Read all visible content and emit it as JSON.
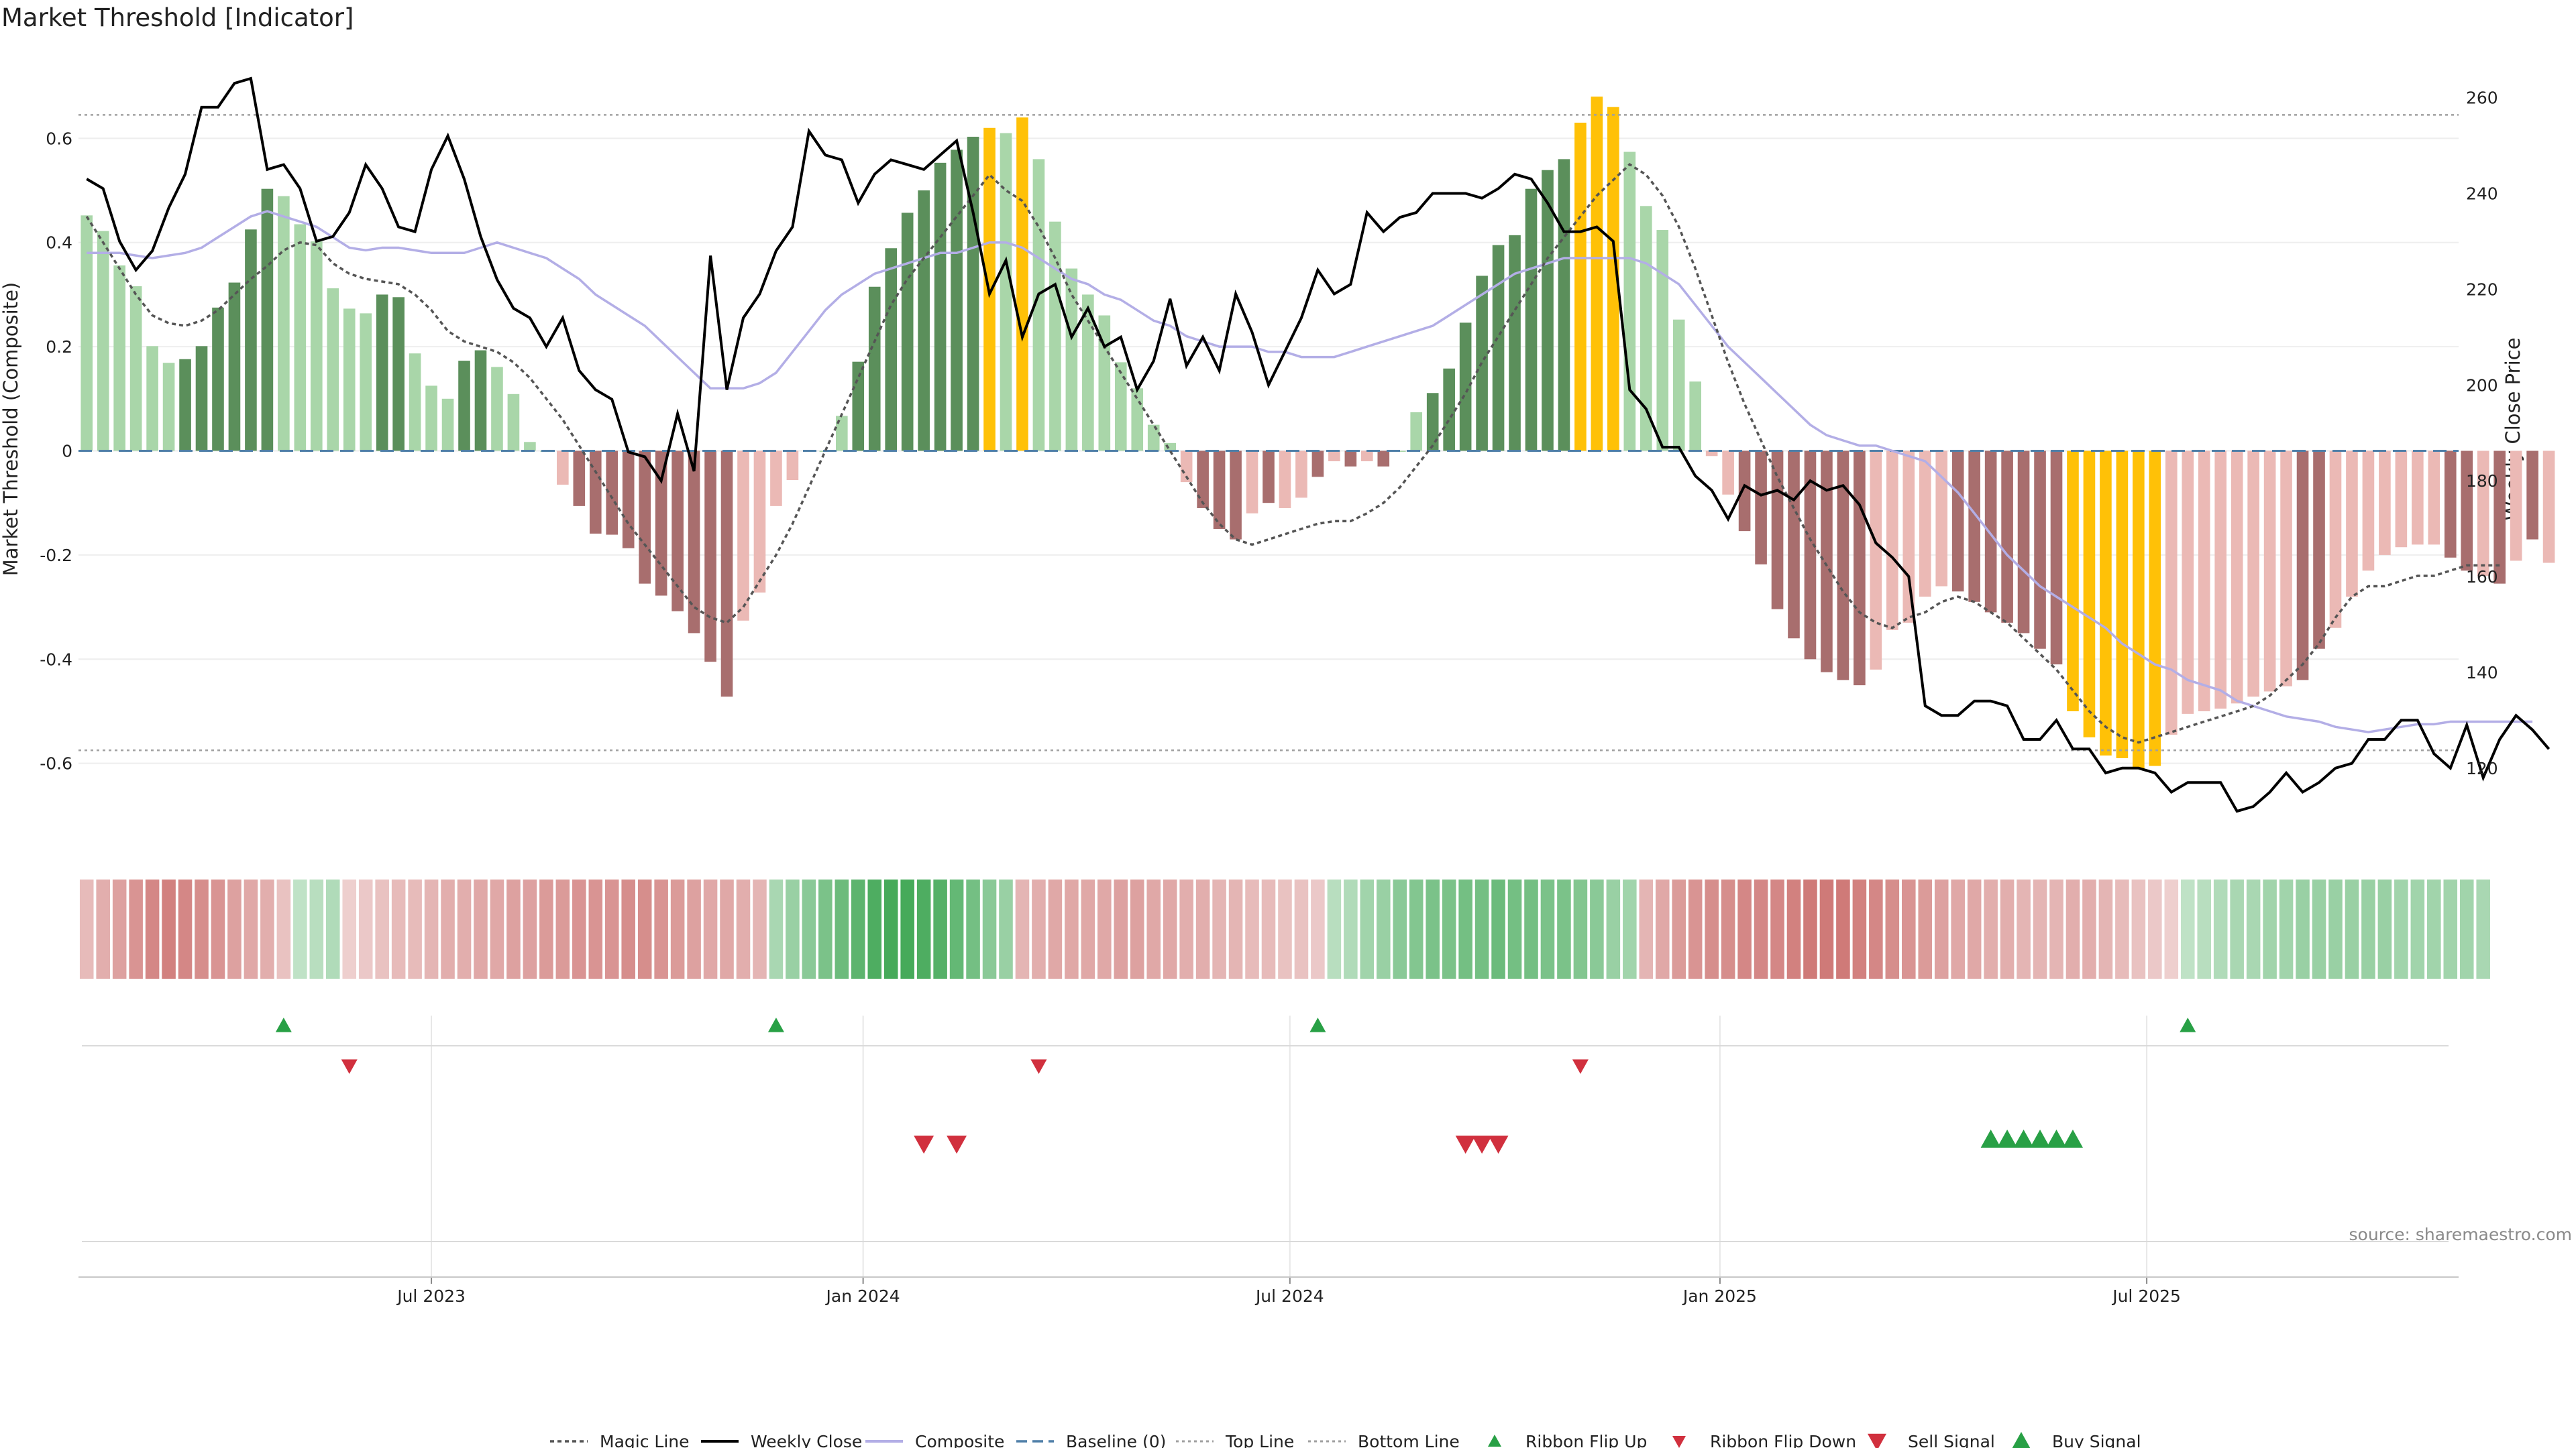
{
  "colors": {
    "pos_strong": "#5b8f5b",
    "pos_light": "#a9d6a9",
    "neg_strong": "#a86e6e",
    "neg_light": "#ebb9b5",
    "extreme": "#ffc107",
    "close": "#000000",
    "composite": "#b3aee6",
    "magic": "#555555",
    "baseline": "#4f7fa8",
    "threshold": "#a0a0a0",
    "flip_up": "#28a045",
    "flip_down": "#d1303e"
  },
  "chart_data": {
    "type": "bar",
    "title": "Market Threshold [Indicator]",
    "ylabel": "Market Threshold (Composite)",
    "y2label": "Weekly Close Price",
    "ylim": [
      -0.76,
      0.76
    ],
    "y2lim": [
      103.6,
      268.9
    ],
    "yticks": [
      "-0.6",
      "-0.4",
      "-0.2",
      "0",
      "0.2",
      "0.4",
      "0.6"
    ],
    "y2ticks": [
      "120",
      "140",
      "160",
      "180",
      "200",
      "220",
      "240",
      "260"
    ],
    "xlim": [
      0,
      144
    ],
    "xticks": [
      {
        "label": "Jul 2023",
        "x": 21
      },
      {
        "label": "Jan 2024",
        "x": 47.3
      },
      {
        "label": "Jul 2024",
        "x": 73.3
      },
      {
        "label": "Jan 2025",
        "x": 99.5
      },
      {
        "label": "Jul 2025",
        "x": 125.5
      }
    ],
    "top_line": 0.645,
    "bottom_line": -0.575,
    "baseline": 0,
    "bars": [
      0.452,
      0.422,
      0.356,
      0.316,
      0.201,
      0.169,
      0.176,
      0.201,
      0.275,
      0.323,
      0.425,
      0.503,
      0.489,
      0.435,
      0.402,
      0.312,
      0.273,
      0.264,
      0.3,
      0.295,
      0.187,
      0.125,
      0.1,
      0.173,
      0.193,
      0.161,
      0.109,
      0.017,
      0.0,
      -0.065,
      -0.106,
      -0.159,
      -0.161,
      -0.187,
      -0.255,
      -0.278,
      -0.308,
      -0.35,
      -0.405,
      -0.472,
      -0.326,
      -0.272,
      -0.106,
      -0.056,
      0.0,
      0.0,
      0.067,
      0.171,
      0.315,
      0.389,
      0.457,
      0.5,
      0.553,
      0.578,
      0.603,
      0.62,
      0.61,
      0.64,
      0.56,
      0.44,
      0.35,
      0.3,
      0.26,
      0.17,
      0.12,
      0.05,
      0.015,
      -0.06,
      -0.11,
      -0.15,
      -0.17,
      -0.12,
      -0.1,
      -0.11,
      -0.09,
      -0.05,
      -0.02,
      -0.03,
      -0.02,
      -0.03,
      0.0,
      0.074,
      0.111,
      0.158,
      0.246,
      0.336,
      0.395,
      0.414,
      0.503,
      0.539,
      0.56,
      0.63,
      0.68,
      0.66,
      0.574,
      0.47,
      0.424,
      0.252,
      0.133,
      -0.01,
      -0.084,
      -0.154,
      -0.218,
      -0.304,
      -0.36,
      -0.4,
      -0.425,
      -0.44,
      -0.45,
      -0.42,
      -0.344,
      -0.33,
      -0.28,
      -0.26,
      -0.27,
      -0.29,
      -0.31,
      -0.33,
      -0.35,
      -0.38,
      -0.41,
      -0.5,
      -0.55,
      -0.585,
      -0.59,
      -0.61,
      -0.605,
      -0.545,
      -0.505,
      -0.5,
      -0.495,
      -0.485,
      -0.472,
      -0.462,
      -0.452,
      -0.44,
      -0.38,
      -0.34,
      -0.28,
      -0.23,
      -0.2,
      -0.185,
      -0.18,
      -0.18,
      -0.205,
      -0.23,
      -0.24,
      -0.255,
      -0.211,
      -0.17,
      -0.215
    ],
    "bar_shades": [
      "l",
      "l",
      "l",
      "l",
      "l",
      "l",
      "s",
      "s",
      "s",
      "s",
      "s",
      "s",
      "l",
      "l",
      "l",
      "l",
      "l",
      "l",
      "s",
      "s",
      "l",
      "l",
      "l",
      "s",
      "s",
      "l",
      "l",
      "l",
      "l",
      "l",
      "s",
      "s",
      "s",
      "s",
      "s",
      "s",
      "s",
      "s",
      "s",
      "s",
      "l",
      "l",
      "l",
      "l",
      "l",
      "l",
      "l",
      "s",
      "s",
      "s",
      "s",
      "s",
      "s",
      "s",
      "s",
      "y",
      "l",
      "y",
      "l",
      "l",
      "l",
      "l",
      "l",
      "l",
      "l",
      "l",
      "l",
      "l",
      "s",
      "s",
      "s",
      "l",
      "s",
      "l",
      "l",
      "s",
      "l",
      "s",
      "l",
      "s",
      "l",
      "l",
      "s",
      "s",
      "s",
      "s",
      "s",
      "s",
      "s",
      "s",
      "s",
      "y",
      "y",
      "y",
      "l",
      "l",
      "l",
      "l",
      "l",
      "l",
      "l",
      "s",
      "s",
      "s",
      "s",
      "s",
      "s",
      "s",
      "s",
      "l",
      "l",
      "l",
      "l",
      "l",
      "s",
      "s",
      "s",
      "s",
      "s",
      "s",
      "s",
      "y",
      "y",
      "y",
      "y",
      "y",
      "y",
      "l",
      "l",
      "l",
      "l",
      "l",
      "l",
      "l",
      "l",
      "s",
      "s",
      "l",
      "l",
      "l",
      "l",
      "l",
      "l",
      "l",
      "s",
      "s",
      "l",
      "s",
      "l",
      "s"
    ],
    "series": [
      {
        "name": "Magic Line",
        "style": "dotted",
        "values": [
          0.45,
          0.4,
          0.35,
          0.3,
          0.26,
          0.245,
          0.24,
          0.25,
          0.27,
          0.3,
          0.33,
          0.355,
          0.385,
          0.4,
          0.395,
          0.36,
          0.34,
          0.33,
          0.325,
          0.32,
          0.3,
          0.27,
          0.23,
          0.21,
          0.2,
          0.19,
          0.17,
          0.14,
          0.1,
          0.06,
          0.01,
          -0.04,
          -0.09,
          -0.14,
          -0.18,
          -0.22,
          -0.26,
          -0.3,
          -0.32,
          -0.33,
          -0.3,
          -0.25,
          -0.2,
          -0.14,
          -0.07,
          0.0,
          0.07,
          0.14,
          0.21,
          0.28,
          0.33,
          0.37,
          0.41,
          0.45,
          0.49,
          0.53,
          0.5,
          0.48,
          0.43,
          0.37,
          0.3,
          0.25,
          0.2,
          0.15,
          0.1,
          0.05,
          0.0,
          -0.05,
          -0.1,
          -0.14,
          -0.17,
          -0.18,
          -0.17,
          -0.16,
          -0.15,
          -0.14,
          -0.135,
          -0.135,
          -0.12,
          -0.1,
          -0.07,
          -0.03,
          0.01,
          0.06,
          0.11,
          0.17,
          0.22,
          0.27,
          0.32,
          0.37,
          0.41,
          0.45,
          0.49,
          0.52,
          0.55,
          0.53,
          0.49,
          0.43,
          0.35,
          0.26,
          0.17,
          0.09,
          0.02,
          -0.05,
          -0.11,
          -0.17,
          -0.22,
          -0.27,
          -0.31,
          -0.33,
          -0.34,
          -0.32,
          -0.31,
          -0.29,
          -0.28,
          -0.29,
          -0.31,
          -0.33,
          -0.36,
          -0.39,
          -0.42,
          -0.46,
          -0.5,
          -0.53,
          -0.55,
          -0.56,
          -0.55,
          -0.54,
          -0.53,
          -0.52,
          -0.51,
          -0.5,
          -0.49,
          -0.47,
          -0.44,
          -0.41,
          -0.37,
          -0.32,
          -0.28,
          -0.26,
          -0.26,
          -0.25,
          -0.24,
          -0.24,
          -0.23,
          -0.22,
          -0.22,
          -0.22
        ]
      },
      {
        "name": "Weekly Close",
        "style": "solid",
        "values": [
          243,
          241,
          230,
          224,
          228,
          237,
          244,
          258,
          258,
          263,
          264,
          245,
          246,
          241,
          230,
          231,
          236,
          246,
          241,
          233,
          232,
          245,
          252,
          243,
          231,
          222,
          216,
          214,
          208,
          214,
          203,
          199,
          197,
          186,
          185,
          180,
          194,
          182,
          227,
          199,
          214,
          219,
          228,
          233,
          253,
          248,
          247,
          238,
          244,
          247,
          246,
          245,
          248,
          251,
          236,
          219,
          226,
          210,
          219,
          221,
          210,
          216,
          208,
          210,
          199,
          205,
          218,
          204,
          210,
          203,
          219,
          211,
          200,
          207,
          214,
          224,
          219,
          221,
          236,
          232,
          235,
          236,
          240,
          240,
          240,
          239,
          241,
          244,
          243,
          238,
          232,
          232,
          233,
          230,
          199,
          195,
          187,
          187,
          181,
          178,
          172,
          179,
          177,
          178,
          176,
          180,
          178,
          179,
          175,
          167,
          164,
          160,
          133,
          131,
          131,
          134,
          134,
          133,
          126,
          126,
          130,
          124,
          124,
          119,
          120,
          120,
          119,
          115,
          117,
          117,
          117,
          111,
          112,
          115,
          119,
          115,
          117,
          120,
          121,
          126,
          126,
          130,
          130,
          123,
          120,
          129,
          118,
          126,
          131,
          128,
          124
        ]
      },
      {
        "name": "Composite",
        "style": "solid",
        "values": [
          0.38,
          0.38,
          0.38,
          0.375,
          0.37,
          0.375,
          0.38,
          0.39,
          0.41,
          0.43,
          0.45,
          0.46,
          0.45,
          0.44,
          0.43,
          0.41,
          0.39,
          0.385,
          0.39,
          0.39,
          0.385,
          0.38,
          0.38,
          0.38,
          0.39,
          0.4,
          0.39,
          0.38,
          0.37,
          0.35,
          0.33,
          0.3,
          0.28,
          0.26,
          0.24,
          0.21,
          0.18,
          0.15,
          0.12,
          0.12,
          0.12,
          0.13,
          0.15,
          0.19,
          0.23,
          0.27,
          0.3,
          0.32,
          0.34,
          0.35,
          0.36,
          0.37,
          0.38,
          0.38,
          0.39,
          0.4,
          0.4,
          0.39,
          0.37,
          0.35,
          0.33,
          0.32,
          0.3,
          0.29,
          0.27,
          0.25,
          0.24,
          0.22,
          0.21,
          0.2,
          0.2,
          0.2,
          0.19,
          0.19,
          0.18,
          0.18,
          0.18,
          0.19,
          0.2,
          0.21,
          0.22,
          0.23,
          0.24,
          0.26,
          0.28,
          0.3,
          0.32,
          0.34,
          0.35,
          0.36,
          0.37,
          0.37,
          0.37,
          0.37,
          0.37,
          0.36,
          0.34,
          0.32,
          0.28,
          0.24,
          0.2,
          0.17,
          0.14,
          0.11,
          0.08,
          0.05,
          0.03,
          0.02,
          0.01,
          0.01,
          0.0,
          -0.01,
          -0.02,
          -0.05,
          -0.08,
          -0.12,
          -0.16,
          -0.2,
          -0.23,
          -0.26,
          -0.28,
          -0.3,
          -0.32,
          -0.34,
          -0.37,
          -0.39,
          -0.41,
          -0.42,
          -0.44,
          -0.45,
          -0.46,
          -0.48,
          -0.49,
          -0.5,
          -0.51,
          -0.515,
          -0.52,
          -0.53,
          -0.535,
          -0.54,
          -0.535,
          -0.53,
          -0.525,
          -0.525,
          -0.52,
          -0.52,
          -0.52,
          -0.52,
          -0.52,
          -0.52
        ]
      }
    ],
    "ribbon": [
      -0.3,
      -0.4,
      -0.5,
      -0.6,
      -0.7,
      -0.75,
      -0.7,
      -0.65,
      -0.6,
      -0.5,
      -0.45,
      -0.4,
      -0.25,
      0.2,
      0.25,
      0.3,
      -0.15,
      -0.2,
      -0.25,
      -0.3,
      -0.3,
      -0.35,
      -0.4,
      -0.4,
      -0.45,
      -0.45,
      -0.5,
      -0.5,
      -0.55,
      -0.55,
      -0.6,
      -0.6,
      -0.6,
      -0.65,
      -0.65,
      -0.6,
      -0.55,
      -0.5,
      -0.45,
      -0.45,
      -0.4,
      -0.35,
      0.35,
      0.45,
      0.55,
      0.65,
      0.75,
      0.85,
      0.95,
      1.0,
      1.0,
      0.95,
      0.9,
      0.8,
      0.7,
      0.55,
      0.45,
      -0.35,
      -0.4,
      -0.45,
      -0.45,
      -0.45,
      -0.45,
      -0.5,
      -0.5,
      -0.45,
      -0.45,
      -0.4,
      -0.4,
      -0.35,
      -0.35,
      -0.3,
      -0.3,
      -0.25,
      -0.25,
      -0.2,
      0.25,
      0.3,
      0.4,
      0.45,
      0.55,
      0.6,
      0.65,
      0.65,
      0.7,
      0.7,
      0.75,
      0.7,
      0.7,
      0.65,
      0.65,
      0.6,
      0.55,
      0.45,
      0.4,
      -0.35,
      -0.45,
      -0.55,
      -0.6,
      -0.65,
      -0.65,
      -0.7,
      -0.7,
      -0.7,
      -0.75,
      -0.8,
      -0.8,
      -0.8,
      -0.75,
      -0.7,
      -0.65,
      -0.6,
      -0.55,
      -0.5,
      -0.45,
      -0.45,
      -0.4,
      -0.4,
      -0.35,
      -0.35,
      -0.35,
      -0.4,
      -0.4,
      -0.35,
      -0.3,
      -0.25,
      -0.2,
      -0.15,
      0.2,
      0.25,
      0.3,
      0.35,
      0.35,
      0.4,
      0.4,
      0.45,
      0.45,
      0.45,
      0.45,
      0.45,
      0.45,
      0.4,
      0.4,
      0.4,
      0.4,
      0.4,
      0.35
    ],
    "flip_up_x": [
      12,
      42,
      75,
      128
    ],
    "flip_down_x": [
      16,
      58,
      91
    ],
    "sell_x": [
      51,
      53,
      84,
      85,
      86
    ],
    "buy_x": [
      116,
      117,
      118,
      119,
      120,
      121
    ]
  },
  "legend": [
    {
      "label": "Magic Line",
      "kind": "dotted"
    },
    {
      "label": "Weekly Close",
      "kind": "solid-black"
    },
    {
      "label": "Composite",
      "kind": "solid-lavender"
    },
    {
      "label": "Baseline (0)",
      "kind": "dashed-blue"
    },
    {
      "label": "Top Line",
      "kind": "dotted-grey"
    },
    {
      "label": "Bottom Line",
      "kind": "dotted-grey"
    },
    {
      "label": "Ribbon Flip Up",
      "kind": "tri-up-small"
    },
    {
      "label": "Ribbon Flip Down",
      "kind": "tri-down-small"
    },
    {
      "label": "Sell Signal",
      "kind": "tri-down"
    },
    {
      "label": "Buy Signal",
      "kind": "tri-up"
    }
  ],
  "source": "source: sharemaestro.com"
}
